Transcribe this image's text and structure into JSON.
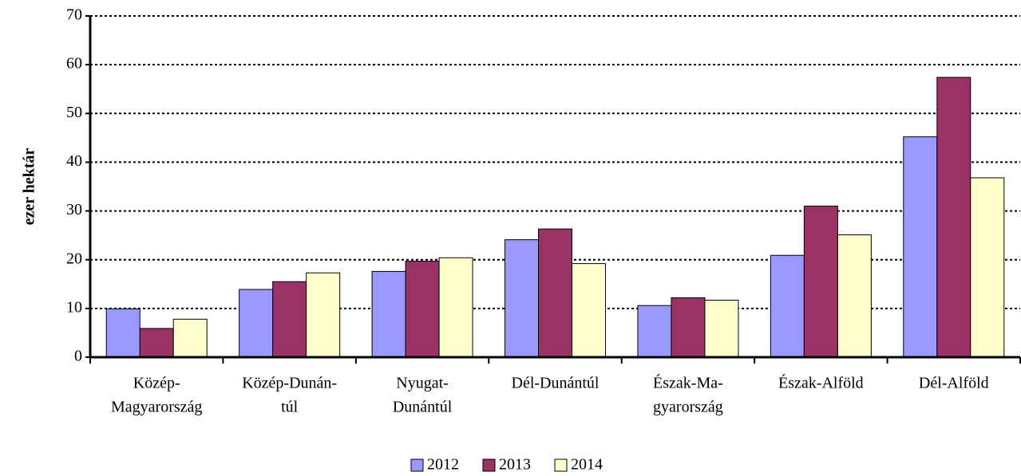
{
  "chart_data": {
    "type": "bar",
    "y_label": "ezer hektár",
    "categories": [
      [
        "Közép-",
        "Magyarország"
      ],
      [
        "Közép-Dunán-",
        "túl"
      ],
      [
        "Nyugat-",
        "Dunántúl"
      ],
      [
        "Dél-Dunántúl"
      ],
      [
        "Észak-Ma-",
        "gyarország"
      ],
      [
        "Észak-Alföld"
      ],
      [
        "Dél-Alföld"
      ]
    ],
    "series": [
      {
        "name": "2012",
        "color": "#9999ff",
        "values": [
          9.9,
          13.9,
          17.6,
          24.1,
          10.6,
          20.9,
          45.2
        ]
      },
      {
        "name": "2013",
        "color": "#993366",
        "values": [
          5.9,
          15.5,
          19.7,
          26.3,
          12.2,
          31.0,
          57.4
        ]
      },
      {
        "name": "2014",
        "color": "#ffffcc",
        "values": [
          7.8,
          17.3,
          20.4,
          19.2,
          11.7,
          25.1,
          36.8
        ]
      }
    ],
    "ylim": [
      0,
      70
    ],
    "yticks": [
      0,
      10,
      20,
      30,
      40,
      50,
      60,
      70
    ],
    "grid": true,
    "legend": "bottom"
  }
}
